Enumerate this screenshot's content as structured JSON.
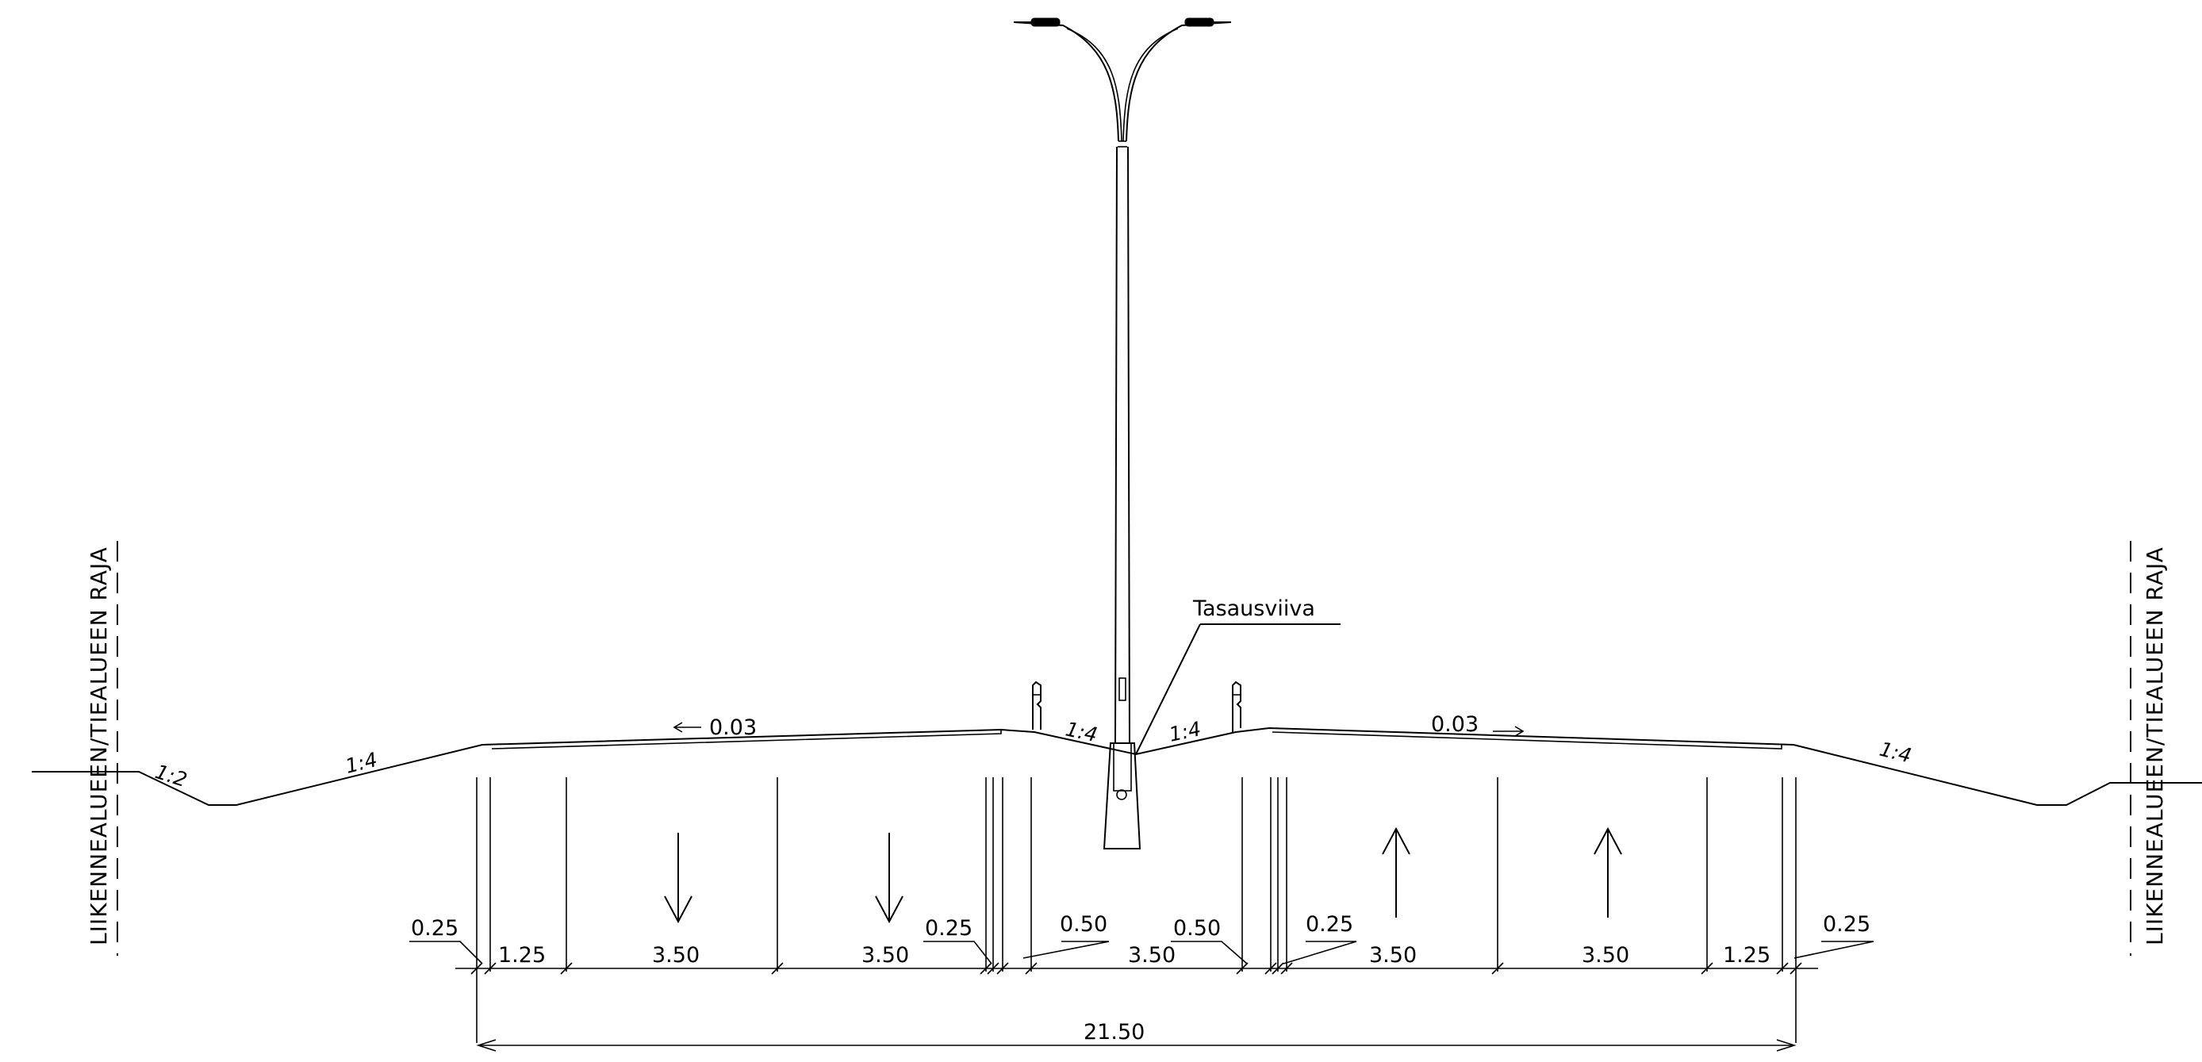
{
  "border_label": "LIIKENNEALUEEN/TIEALUEEN RAJA",
  "profile_label": "Tasausviiva",
  "slopes": {
    "left_ditch": "1:2",
    "left_embankment": "1:4",
    "median_left": "1:4",
    "median_right": "1:4",
    "right_embankment": "1:4"
  },
  "crossfall": {
    "left": "0.03",
    "right": "0.03"
  },
  "dimensions": {
    "left_edge_offset": "0.25",
    "left_shoulder": "1.25",
    "left_lane_outer": "3.50",
    "left_lane_inner": "3.50",
    "left_inner_edge": "0.25",
    "median_left_offset": "0.50",
    "median": "3.50",
    "median_right_offset": "0.50",
    "right_inner_edge": "0.25",
    "right_lane_inner": "3.50",
    "right_lane_outer": "3.50",
    "right_shoulder": "1.25",
    "right_edge_offset": "0.25",
    "total_width": "21.50"
  },
  "lane_directions": {
    "left_outer": "down",
    "left_inner": "down",
    "right_inner": "up",
    "right_outer": "up"
  }
}
